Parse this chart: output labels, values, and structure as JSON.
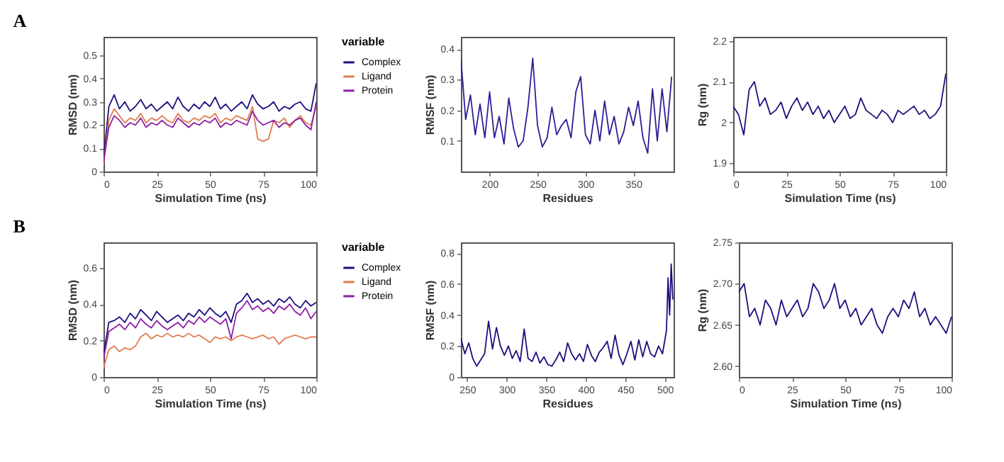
{
  "chart_data": [
    {
      "type": "line",
      "title": "A",
      "xlabel": "Simulation Time (ns)",
      "ylabel": "RMSD (nm)",
      "legend_title": "variable",
      "legend": "right",
      "marker": "none",
      "line_style": "solid",
      "x": [
        0,
        2.5,
        5,
        7.5,
        10,
        12.5,
        15,
        17.5,
        20,
        22.5,
        25,
        27.5,
        30,
        32.5,
        35,
        37.5,
        40,
        42.5,
        45,
        47.5,
        50,
        52.5,
        55,
        57.5,
        60,
        62.5,
        65,
        67.5,
        70,
        72.5,
        75,
        77.5,
        80,
        82.5,
        85,
        87.5,
        90,
        92.5,
        95,
        97.5,
        100
      ],
      "xlim": [
        0,
        100
      ],
      "xticks": [
        0,
        25,
        50,
        75,
        100
      ],
      "ylim": [
        0,
        0.58
      ],
      "yticks": [
        0,
        0.1,
        0.2,
        0.3,
        0.4,
        0.5
      ],
      "series": [
        {
          "name": "Complex",
          "color": "#1c0f7f",
          "values": [
            0.05,
            0.28,
            0.33,
            0.27,
            0.3,
            0.26,
            0.28,
            0.31,
            0.27,
            0.29,
            0.26,
            0.28,
            0.3,
            0.27,
            0.32,
            0.28,
            0.26,
            0.29,
            0.27,
            0.3,
            0.28,
            0.32,
            0.27,
            0.29,
            0.26,
            0.28,
            0.3,
            0.27,
            0.33,
            0.29,
            0.27,
            0.28,
            0.3,
            0.26,
            0.28,
            0.27,
            0.29,
            0.3,
            0.27,
            0.26,
            0.38
          ]
        },
        {
          "name": "Ligand",
          "color": "#e07c50",
          "values": [
            0.03,
            0.22,
            0.27,
            0.24,
            0.21,
            0.23,
            0.22,
            0.25,
            0.21,
            0.23,
            0.22,
            0.24,
            0.22,
            0.21,
            0.25,
            0.22,
            0.21,
            0.23,
            0.22,
            0.24,
            0.23,
            0.25,
            0.21,
            0.23,
            0.22,
            0.24,
            0.23,
            0.22,
            0.28,
            0.14,
            0.13,
            0.14,
            0.22,
            0.21,
            0.23,
            0.19,
            0.22,
            0.24,
            0.21,
            0.2,
            0.28
          ]
        },
        {
          "name": "Protein",
          "color": "#8e1fa6",
          "values": [
            0.04,
            0.19,
            0.24,
            0.22,
            0.19,
            0.21,
            0.2,
            0.23,
            0.19,
            0.21,
            0.2,
            0.22,
            0.2,
            0.19,
            0.23,
            0.21,
            0.19,
            0.21,
            0.2,
            0.22,
            0.21,
            0.23,
            0.19,
            0.21,
            0.2,
            0.22,
            0.21,
            0.2,
            0.26,
            0.22,
            0.2,
            0.21,
            0.22,
            0.19,
            0.21,
            0.2,
            0.22,
            0.23,
            0.2,
            0.18,
            0.3
          ]
        }
      ]
    },
    {
      "type": "line",
      "xlabel": "Residues",
      "ylabel": "RMSF (nm)",
      "marker": "none",
      "line_style": "solid",
      "x": [
        170,
        175,
        180,
        185,
        190,
        195,
        200,
        205,
        210,
        215,
        220,
        225,
        230,
        235,
        240,
        245,
        250,
        255,
        260,
        265,
        270,
        275,
        280,
        285,
        290,
        295,
        300,
        305,
        310,
        315,
        320,
        325,
        330,
        335,
        340,
        345,
        350,
        355,
        360,
        365,
        370,
        375,
        380,
        385,
        390
      ],
      "xlim": [
        170,
        392
      ],
      "xticks": [
        200,
        250,
        300,
        350
      ],
      "ylim": [
        0,
        0.44
      ],
      "yticks": [
        0.1,
        0.2,
        0.3,
        0.4
      ],
      "series": [
        {
          "color": "#2a1f96",
          "values": [
            0.37,
            0.17,
            0.25,
            0.12,
            0.22,
            0.11,
            0.26,
            0.11,
            0.18,
            0.09,
            0.24,
            0.14,
            0.08,
            0.1,
            0.21,
            0.37,
            0.15,
            0.08,
            0.11,
            0.21,
            0.12,
            0.15,
            0.17,
            0.11,
            0.26,
            0.31,
            0.12,
            0.09,
            0.2,
            0.1,
            0.23,
            0.12,
            0.18,
            0.09,
            0.13,
            0.21,
            0.15,
            0.23,
            0.11,
            0.06,
            0.27,
            0.1,
            0.27,
            0.13,
            0.31
          ]
        }
      ]
    },
    {
      "type": "line",
      "xlabel": "Simulation Time (ns)",
      "ylabel": "Rg (nm)",
      "marker": "none",
      "line_style": "solid",
      "x": [
        0,
        2.5,
        5,
        7.5,
        10,
        12.5,
        15,
        17.5,
        20,
        22.5,
        25,
        27.5,
        30,
        32.5,
        35,
        37.5,
        40,
        42.5,
        45,
        47.5,
        50,
        52.5,
        55,
        57.5,
        60,
        62.5,
        65,
        67.5,
        70,
        72.5,
        75,
        77.5,
        80,
        82.5,
        85,
        87.5,
        90,
        92.5,
        95,
        97.5,
        100
      ],
      "xlim": [
        0,
        100
      ],
      "xticks": [
        0,
        25,
        50,
        75,
        100
      ],
      "ylim": [
        1.88,
        2.21
      ],
      "yticks": [
        1.9,
        2,
        2.1,
        2.2
      ],
      "series": [
        {
          "color": "#1c0f7f",
          "values": [
            2.04,
            2.02,
            1.97,
            2.08,
            2.1,
            2.04,
            2.06,
            2.02,
            2.03,
            2.05,
            2.01,
            2.04,
            2.06,
            2.03,
            2.05,
            2.02,
            2.04,
            2.01,
            2.03,
            2.0,
            2.02,
            2.04,
            2.01,
            2.02,
            2.06,
            2.03,
            2.02,
            2.01,
            2.03,
            2.02,
            2.0,
            2.03,
            2.02,
            2.03,
            2.04,
            2.02,
            2.03,
            2.01,
            2.02,
            2.04,
            2.12
          ]
        }
      ]
    },
    {
      "type": "line",
      "title": "B",
      "xlabel": "Simulation Time (ns)",
      "ylabel": "RMSD (nm)",
      "legend_title": "variable",
      "legend": "right",
      "marker": "none",
      "line_style": "solid",
      "x": [
        0,
        2.5,
        5,
        7.5,
        10,
        12.5,
        15,
        17.5,
        20,
        22.5,
        25,
        27.5,
        30,
        32.5,
        35,
        37.5,
        40,
        42.5,
        45,
        47.5,
        50,
        52.5,
        55,
        57.5,
        60,
        62.5,
        65,
        67.5,
        70,
        72.5,
        75,
        77.5,
        80,
        82.5,
        85,
        87.5,
        90,
        92.5,
        95,
        97.5,
        100
      ],
      "xlim": [
        0,
        100
      ],
      "xticks": [
        0,
        25,
        50,
        75,
        100
      ],
      "ylim": [
        0,
        0.74
      ],
      "yticks": [
        0,
        0.2,
        0.4,
        0.6
      ],
      "series": [
        {
          "name": "Complex",
          "color": "#1c0f7f",
          "values": [
            0.12,
            0.3,
            0.31,
            0.33,
            0.3,
            0.35,
            0.32,
            0.37,
            0.34,
            0.31,
            0.36,
            0.33,
            0.3,
            0.32,
            0.34,
            0.31,
            0.35,
            0.33,
            0.37,
            0.34,
            0.38,
            0.35,
            0.33,
            0.36,
            0.3,
            0.4,
            0.42,
            0.46,
            0.41,
            0.43,
            0.4,
            0.42,
            0.39,
            0.43,
            0.41,
            0.44,
            0.4,
            0.38,
            0.42,
            0.39,
            0.41
          ]
        },
        {
          "name": "Ligand",
          "color": "#e07c50",
          "values": [
            0.05,
            0.15,
            0.17,
            0.14,
            0.16,
            0.15,
            0.17,
            0.22,
            0.24,
            0.21,
            0.23,
            0.22,
            0.24,
            0.22,
            0.23,
            0.22,
            0.24,
            0.22,
            0.23,
            0.21,
            0.19,
            0.22,
            0.21,
            0.22,
            0.2,
            0.22,
            0.23,
            0.22,
            0.21,
            0.22,
            0.23,
            0.21,
            0.22,
            0.18,
            0.21,
            0.22,
            0.23,
            0.22,
            0.21,
            0.22,
            0.22
          ]
        },
        {
          "name": "Protein",
          "color": "#8e1fa6",
          "values": [
            0.1,
            0.25,
            0.27,
            0.29,
            0.26,
            0.3,
            0.27,
            0.32,
            0.29,
            0.27,
            0.31,
            0.28,
            0.26,
            0.28,
            0.3,
            0.27,
            0.31,
            0.29,
            0.33,
            0.3,
            0.33,
            0.31,
            0.29,
            0.32,
            0.21,
            0.35,
            0.38,
            0.42,
            0.37,
            0.39,
            0.36,
            0.38,
            0.35,
            0.39,
            0.37,
            0.4,
            0.36,
            0.34,
            0.38,
            0.32,
            0.36
          ]
        }
      ]
    },
    {
      "type": "line",
      "xlabel": "Residues",
      "ylabel": "RMSF (nm)",
      "marker": "none",
      "line_style": "solid",
      "x": [
        242,
        247,
        252,
        257,
        262,
        267,
        272,
        277,
        282,
        287,
        292,
        297,
        302,
        307,
        312,
        317,
        322,
        327,
        332,
        337,
        342,
        347,
        352,
        357,
        362,
        367,
        372,
        377,
        382,
        387,
        392,
        397,
        402,
        407,
        412,
        417,
        422,
        427,
        432,
        437,
        442,
        447,
        452,
        457,
        462,
        467,
        472,
        477,
        482,
        487,
        492,
        497,
        502,
        504,
        506,
        508,
        510
      ],
      "xlim": [
        242,
        511
      ],
      "xticks": [
        250,
        300,
        350,
        400,
        450,
        500
      ],
      "ylim": [
        0,
        0.87
      ],
      "yticks": [
        0,
        0.2,
        0.4,
        0.6,
        0.8
      ],
      "series": [
        {
          "color": "#1c0f7f",
          "values": [
            0.25,
            0.15,
            0.22,
            0.12,
            0.07,
            0.11,
            0.15,
            0.36,
            0.18,
            0.32,
            0.2,
            0.14,
            0.2,
            0.12,
            0.17,
            0.1,
            0.31,
            0.12,
            0.1,
            0.16,
            0.09,
            0.13,
            0.08,
            0.07,
            0.11,
            0.16,
            0.1,
            0.22,
            0.15,
            0.11,
            0.15,
            0.1,
            0.21,
            0.14,
            0.1,
            0.16,
            0.19,
            0.23,
            0.12,
            0.27,
            0.14,
            0.08,
            0.15,
            0.23,
            0.11,
            0.24,
            0.13,
            0.23,
            0.15,
            0.13,
            0.2,
            0.15,
            0.3,
            0.64,
            0.4,
            0.73,
            0.5
          ]
        }
      ]
    },
    {
      "type": "line",
      "xlabel": "Simulation Time (ns)",
      "ylabel": "Rg (nm)",
      "marker": "none",
      "line_style": "solid",
      "x": [
        0,
        2.5,
        5,
        7.5,
        10,
        12.5,
        15,
        17.5,
        20,
        22.5,
        25,
        27.5,
        30,
        32.5,
        35,
        37.5,
        40,
        42.5,
        45,
        47.5,
        50,
        52.5,
        55,
        57.5,
        60,
        62.5,
        65,
        67.5,
        70,
        72.5,
        75,
        77.5,
        80,
        82.5,
        85,
        87.5,
        90,
        92.5,
        95,
        97.5,
        100
      ],
      "xlim": [
        0,
        100
      ],
      "xticks": [
        0,
        25,
        50,
        75,
        100
      ],
      "ylim": [
        2.587,
        2.75
      ],
      "yticks": [
        {
          "value": 2.6,
          "label": "2.60"
        },
        2.65,
        {
          "value": 2.7,
          "label": "2.70"
        },
        2.75
      ],
      "series": [
        {
          "color": "#1c0f7f",
          "values": [
            2.69,
            2.7,
            2.66,
            2.67,
            2.65,
            2.68,
            2.67,
            2.65,
            2.68,
            2.66,
            2.67,
            2.68,
            2.66,
            2.67,
            2.7,
            2.69,
            2.67,
            2.68,
            2.7,
            2.67,
            2.68,
            2.66,
            2.67,
            2.65,
            2.66,
            2.67,
            2.65,
            2.64,
            2.66,
            2.67,
            2.66,
            2.68,
            2.67,
            2.69,
            2.66,
            2.67,
            2.65,
            2.66,
            2.65,
            2.64,
            2.66
          ]
        }
      ]
    }
  ]
}
